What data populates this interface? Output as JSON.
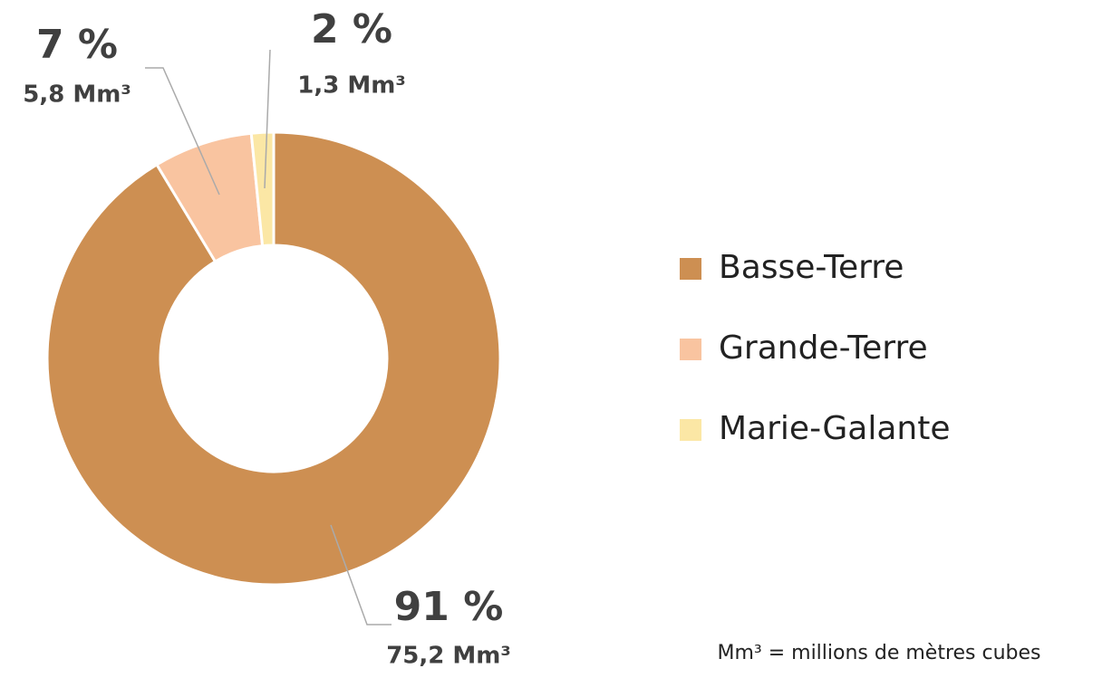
{
  "chart_data": {
    "type": "donut",
    "categories": [
      "Basse-Terre",
      "Grande-Terre",
      "Marie-Galante"
    ],
    "values": [
      75.2,
      5.8,
      1.3
    ],
    "value_labels": [
      "75,2 Mm³",
      "5,8 Mm³",
      "1,3 Mm³"
    ],
    "percent_labels": [
      "91 %",
      "7 %",
      "2 %"
    ],
    "colors": [
      "#cd8f52",
      "#f9c4a0",
      "#fbe7a5"
    ],
    "legend": "right",
    "footnote": "Mm³ = millions de mètres cubes"
  }
}
